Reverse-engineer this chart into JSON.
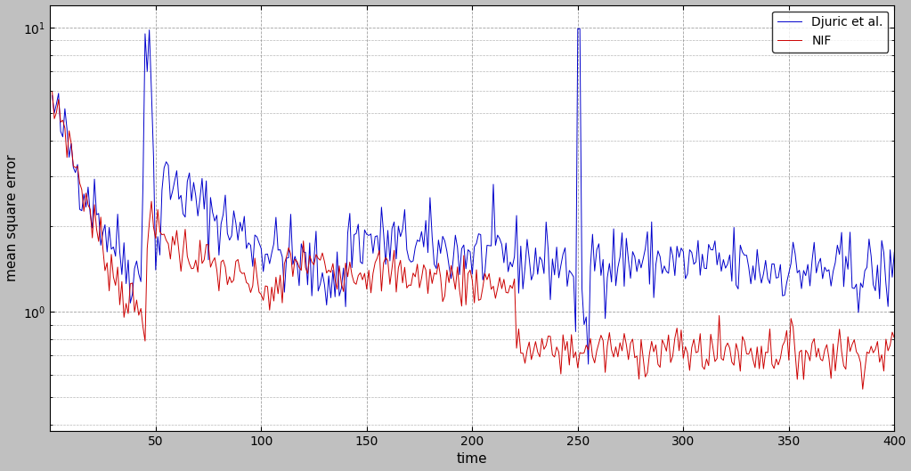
{
  "title": "",
  "xlabel": "time",
  "ylabel": "mean square error",
  "xlim": [
    0,
    400
  ],
  "ylim": [
    0.38,
    12
  ],
  "xticks": [
    50,
    100,
    150,
    200,
    250,
    300,
    350,
    400
  ],
  "legend_labels": [
    "Djuric et al.",
    "NIF"
  ],
  "blue_color": "#0000cc",
  "red_color": "#cc0000",
  "bg_color": "#c0c0c0",
  "plot_bg_color": "#ffffff",
  "n_points": 400
}
